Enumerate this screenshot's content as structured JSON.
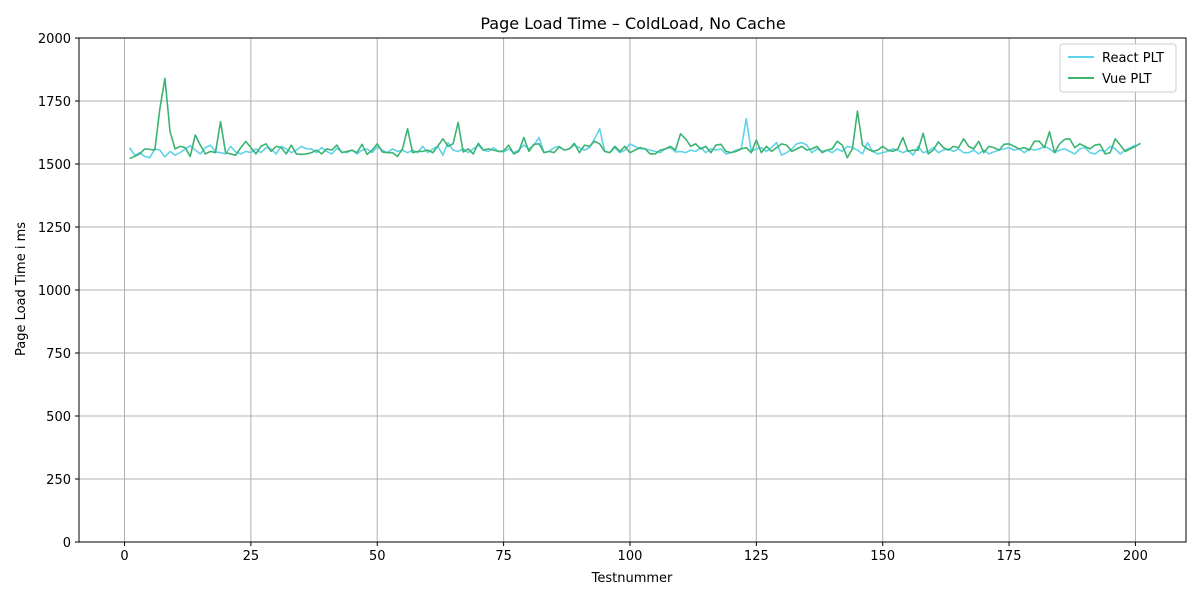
{
  "chart_data": {
    "type": "line",
    "title": "Page Load Time – ColdLoad, No Cache",
    "xlabel": "Testnummer",
    "ylabel": "Page Load Time i ms",
    "xlim": [
      -9,
      210
    ],
    "ylim": [
      0,
      2000
    ],
    "xticks": [
      0,
      25,
      50,
      75,
      100,
      125,
      150,
      175,
      200
    ],
    "yticks": [
      0,
      250,
      500,
      750,
      1000,
      1250,
      1500,
      1750,
      2000
    ],
    "grid": true,
    "legend_position": "top-right",
    "series": [
      {
        "name": "React PLT",
        "color": "#5fd3ea",
        "x_start": 1,
        "values": [
          1565,
          1535,
          1545,
          1530,
          1525,
          1560,
          1555,
          1528,
          1550,
          1535,
          1545,
          1560,
          1572,
          1555,
          1540,
          1565,
          1575,
          1548,
          1545,
          1540,
          1570,
          1548,
          1540,
          1550,
          1545,
          1560,
          1545,
          1565,
          1560,
          1540,
          1570,
          1560,
          1545,
          1555,
          1570,
          1560,
          1560,
          1545,
          1565,
          1550,
          1540,
          1562,
          1548,
          1545,
          1555,
          1540,
          1555,
          1560,
          1545,
          1568,
          1555,
          1545,
          1560,
          1550,
          1555,
          1545,
          1555,
          1545,
          1570,
          1545,
          1560,
          1570,
          1535,
          1585,
          1555,
          1550,
          1560,
          1545,
          1560,
          1575,
          1555,
          1550,
          1565,
          1550,
          1548,
          1560,
          1545,
          1555,
          1575,
          1560,
          1575,
          1605,
          1545,
          1550,
          1565,
          1570,
          1555,
          1560,
          1575,
          1565,
          1555,
          1565,
          1600,
          1640,
          1550,
          1545,
          1565,
          1545,
          1555,
          1580,
          1570,
          1560,
          1560,
          1555,
          1550,
          1545,
          1560,
          1565,
          1548,
          1550,
          1545,
          1555,
          1550,
          1565,
          1545,
          1560,
          1555,
          1560,
          1540,
          1545,
          1555,
          1560,
          1680,
          1550,
          1560,
          1565,
          1550,
          1565,
          1585,
          1535,
          1545,
          1560,
          1580,
          1585,
          1575,
          1545,
          1560,
          1550,
          1555,
          1545,
          1560,
          1550,
          1570,
          1565,
          1555,
          1540,
          1585,
          1550,
          1540,
          1545,
          1550,
          1560,
          1555,
          1545,
          1555,
          1535,
          1570,
          1545,
          1550,
          1565,
          1545,
          1555,
          1560,
          1550,
          1560,
          1545,
          1545,
          1555,
          1540,
          1555,
          1540,
          1548,
          1555,
          1560,
          1565,
          1555,
          1560,
          1545,
          1560,
          1555,
          1560,
          1570,
          1560,
          1545,
          1555,
          1560,
          1550,
          1540,
          1560,
          1565,
          1545,
          1540,
          1555,
          1550,
          1570,
          1560,
          1540,
          1555,
          1565,
          1575
        ]
      },
      {
        "name": "Vue PLT",
        "color": "#3cb371",
        "x_start": 1,
        "values": [
          1522,
          1530,
          1540,
          1560,
          1558,
          1555,
          1720,
          1840,
          1630,
          1560,
          1570,
          1565,
          1530,
          1615,
          1575,
          1540,
          1550,
          1545,
          1668,
          1545,
          1540,
          1535,
          1565,
          1590,
          1565,
          1540,
          1570,
          1580,
          1550,
          1570,
          1565,
          1540,
          1575,
          1540,
          1538,
          1540,
          1545,
          1555,
          1540,
          1560,
          1555,
          1575,
          1545,
          1550,
          1555,
          1545,
          1578,
          1538,
          1555,
          1580,
          1548,
          1545,
          1545,
          1530,
          1560,
          1640,
          1545,
          1550,
          1550,
          1555,
          1545,
          1572,
          1600,
          1570,
          1580,
          1665,
          1548,
          1560,
          1540,
          1582,
          1555,
          1560,
          1555,
          1550,
          1552,
          1575,
          1540,
          1550,
          1605,
          1550,
          1578,
          1580,
          1545,
          1550,
          1545,
          1568,
          1555,
          1560,
          1582,
          1545,
          1575,
          1570,
          1590,
          1580,
          1550,
          1545,
          1570,
          1550,
          1570,
          1545,
          1555,
          1565,
          1560,
          1540,
          1540,
          1555,
          1560,
          1570,
          1555,
          1620,
          1600,
          1570,
          1580,
          1560,
          1570,
          1545,
          1575,
          1578,
          1550,
          1545,
          1550,
          1560,
          1565,
          1545,
          1595,
          1545,
          1570,
          1550,
          1565,
          1580,
          1575,
          1550,
          1560,
          1570,
          1555,
          1560,
          1570,
          1545,
          1555,
          1560,
          1590,
          1575,
          1525,
          1560,
          1710,
          1575,
          1560,
          1550,
          1555,
          1570,
          1555,
          1550,
          1560,
          1605,
          1550,
          1555,
          1555,
          1622,
          1540,
          1555,
          1588,
          1565,
          1555,
          1570,
          1565,
          1600,
          1570,
          1560,
          1590,
          1545,
          1570,
          1565,
          1555,
          1578,
          1580,
          1570,
          1560,
          1565,
          1555,
          1590,
          1590,
          1565,
          1628,
          1545,
          1580,
          1598,
          1600,
          1565,
          1580,
          1570,
          1560,
          1575,
          1578,
          1540,
          1545,
          1600,
          1575,
          1550,
          1560,
          1570,
          1582
        ]
      }
    ]
  }
}
